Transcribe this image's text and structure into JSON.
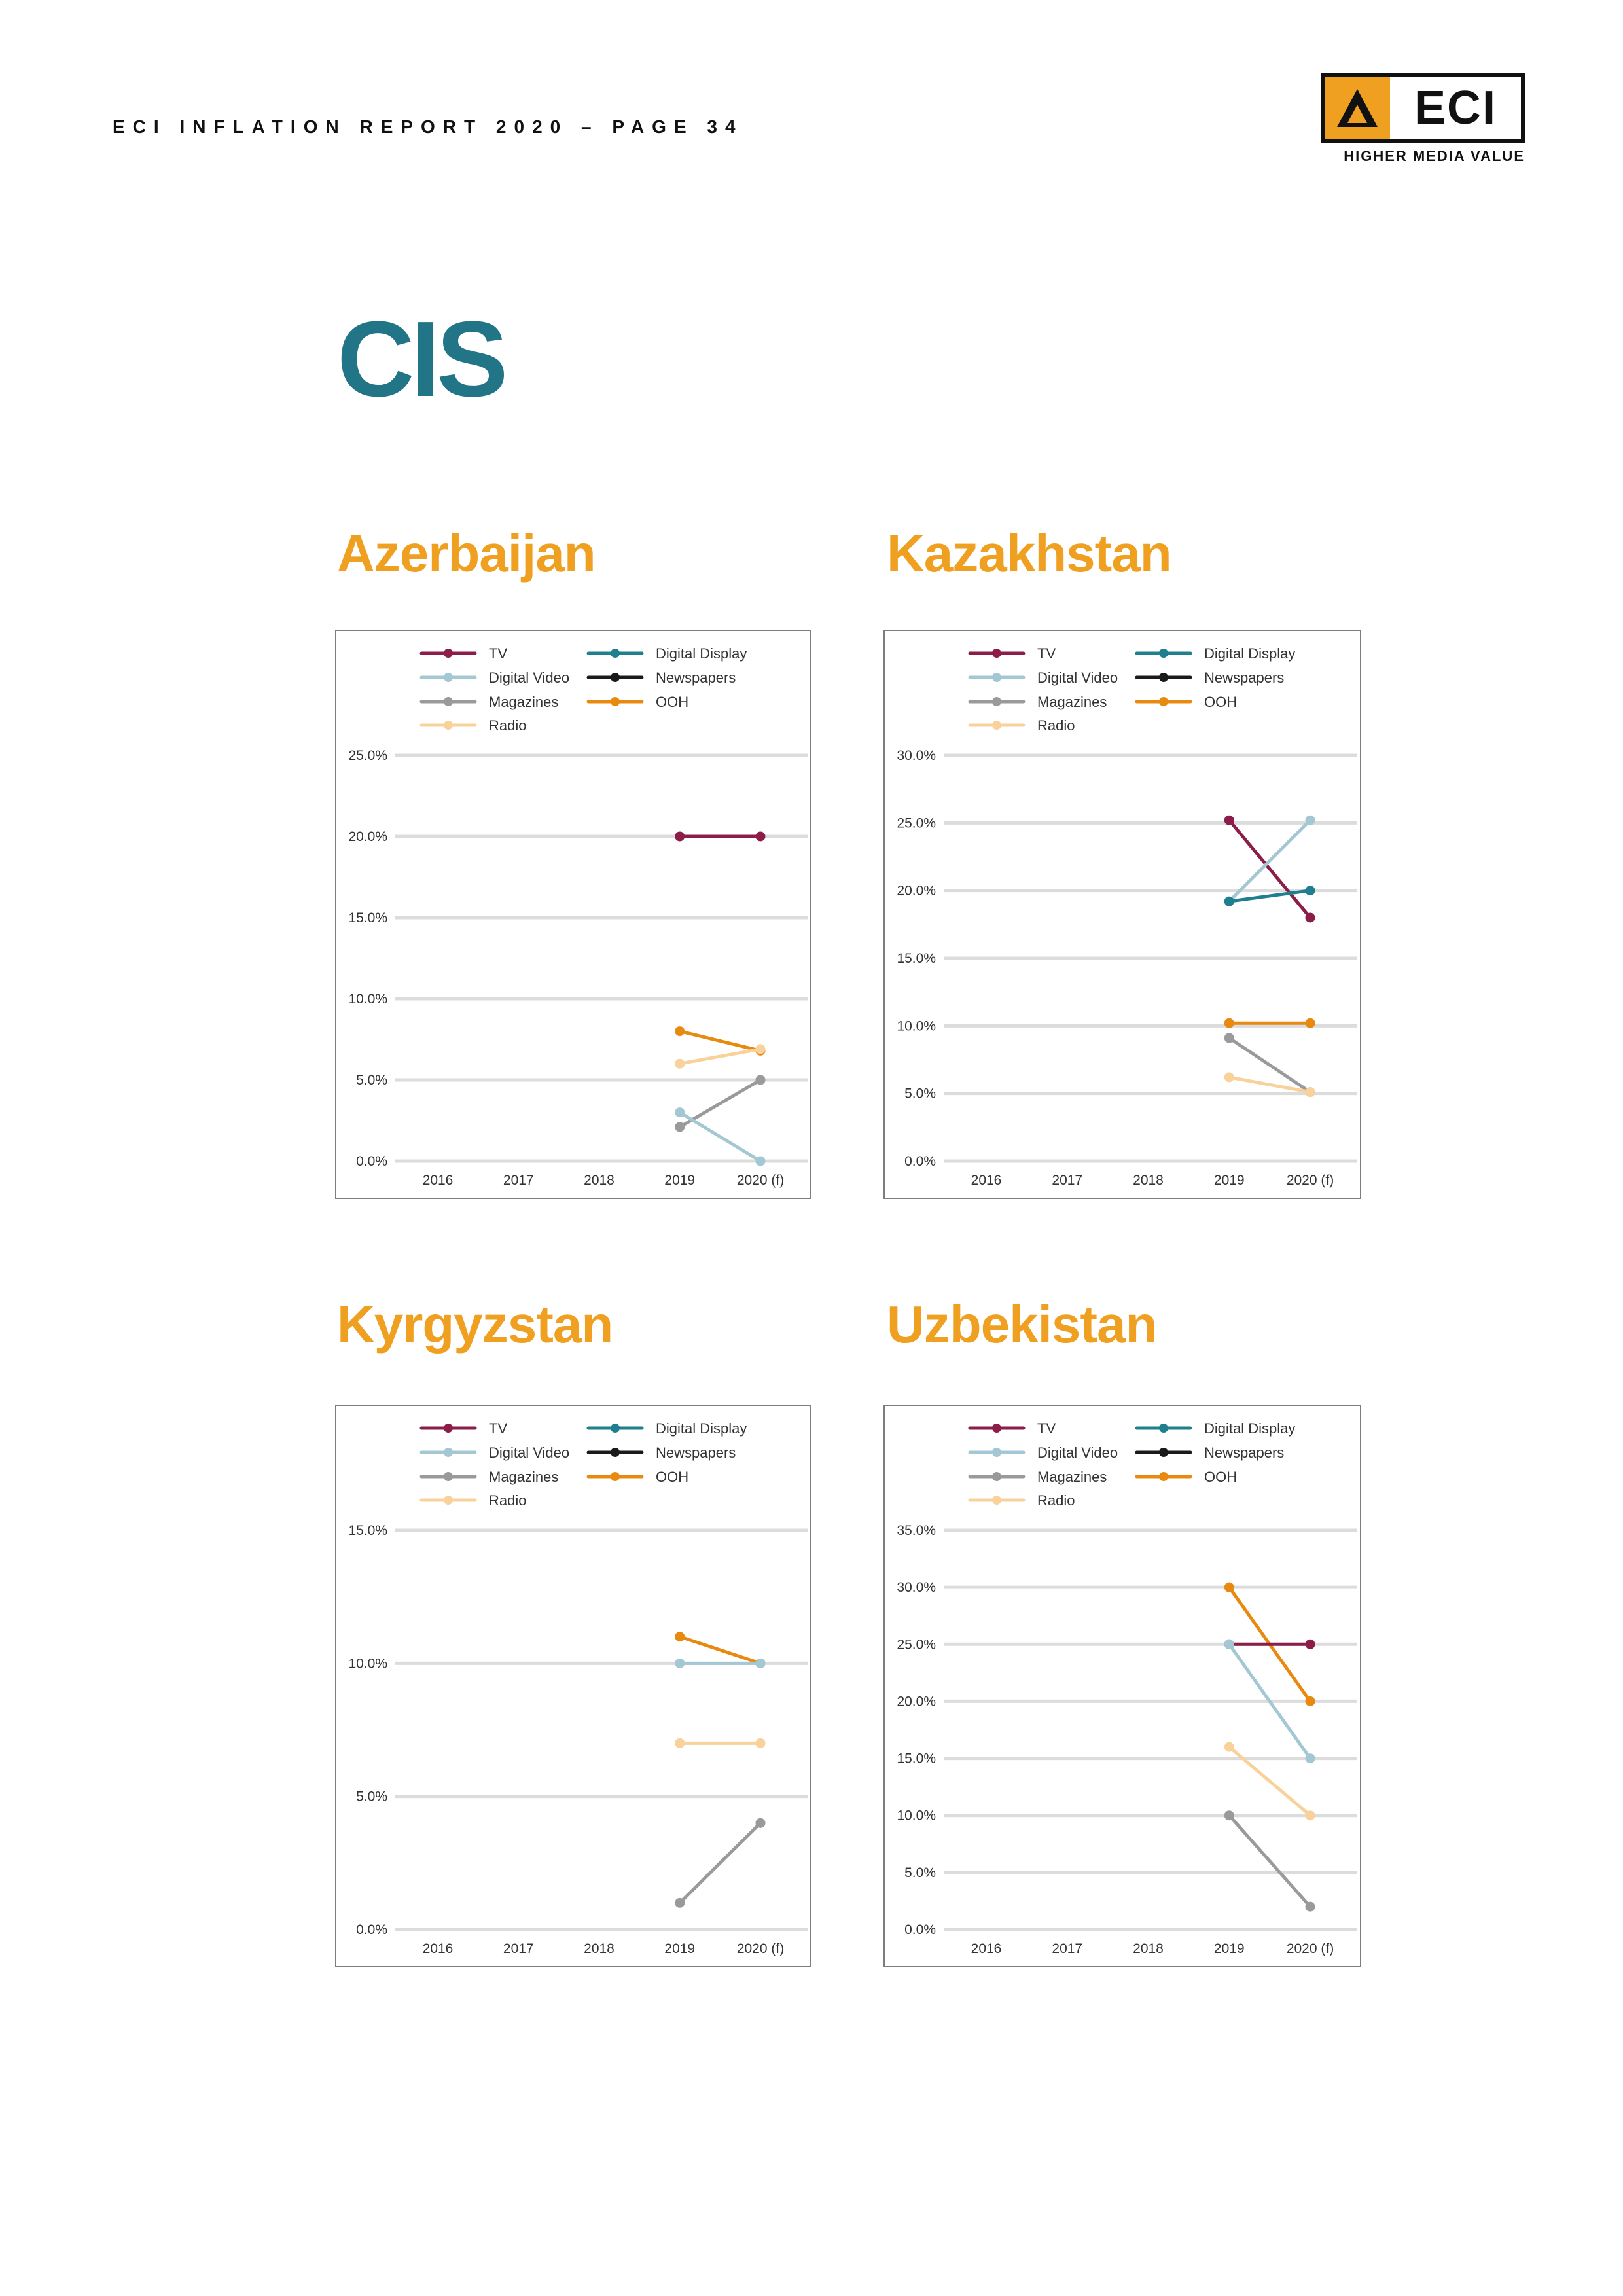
{
  "header": {
    "text": "ECI INFLATION REPORT 2020 – PAGE 34"
  },
  "logo": {
    "word": "ECI",
    "tagline": "HIGHER MEDIA VALUE",
    "accent": "#f0a020"
  },
  "section_title": "CIS",
  "colors": {
    "TV": "#8b1d48",
    "Digital Display": "#1f7f8f",
    "Digital Video": "#a3c8d3",
    "Newspapers": "#1a1a1a",
    "Magazines": "#9a9a9a",
    "OOH": "#e88a10",
    "Radio": "#f8d29a",
    "title_orange": "#f0a020",
    "title_teal": "#217587"
  },
  "legend": [
    "TV",
    "Digital Display",
    "Digital Video",
    "Newspapers",
    "Magazines",
    "OOH",
    "Radio"
  ],
  "chart_data": [
    {
      "type": "line",
      "title": "Azerbaijan",
      "x": [
        "2016",
        "2017",
        "2018",
        "2019",
        "2020 (f)"
      ],
      "yticks": [
        "0.0%",
        "5.0%",
        "10.0%",
        "15.0%",
        "20.0%",
        "25.0%"
      ],
      "ylim": [
        0,
        25
      ],
      "series": [
        {
          "name": "TV",
          "values": [
            null,
            null,
            null,
            20,
            20
          ]
        },
        {
          "name": "OOH",
          "values": [
            null,
            null,
            null,
            8,
            6.8
          ]
        },
        {
          "name": "Radio",
          "values": [
            null,
            null,
            null,
            6,
            6.9
          ]
        },
        {
          "name": "Magazines",
          "values": [
            null,
            null,
            null,
            2.1,
            5
          ]
        },
        {
          "name": "Digital Video",
          "values": [
            null,
            null,
            null,
            3,
            0
          ]
        }
      ]
    },
    {
      "type": "line",
      "title": "Kazakhstan",
      "x": [
        "2016",
        "2017",
        "2018",
        "2019",
        "2020 (f)"
      ],
      "yticks": [
        "0.0%",
        "5.0%",
        "10.0%",
        "15.0%",
        "20.0%",
        "25.0%",
        "30.0%"
      ],
      "ylim": [
        0,
        30
      ],
      "series": [
        {
          "name": "TV",
          "values": [
            null,
            null,
            null,
            25.2,
            18
          ]
        },
        {
          "name": "Digital Video",
          "values": [
            null,
            null,
            null,
            19.2,
            25.2
          ]
        },
        {
          "name": "Digital Display",
          "values": [
            null,
            null,
            null,
            19.2,
            20
          ]
        },
        {
          "name": "OOH",
          "values": [
            null,
            null,
            null,
            10.2,
            10.2
          ]
        },
        {
          "name": "Magazines",
          "values": [
            null,
            null,
            null,
            9.1,
            5.1
          ]
        },
        {
          "name": "Radio",
          "values": [
            null,
            null,
            null,
            6.2,
            5.1
          ]
        }
      ]
    },
    {
      "type": "line",
      "title": "Kyrgyzstan",
      "x": [
        "2016",
        "2017",
        "2018",
        "2019",
        "2020 (f)"
      ],
      "yticks": [
        "0.0%",
        "5.0%",
        "10.0%",
        "15.0%"
      ],
      "ylim": [
        0,
        15
      ],
      "series": [
        {
          "name": "OOH",
          "values": [
            null,
            null,
            null,
            11,
            10
          ]
        },
        {
          "name": "Digital Video",
          "values": [
            null,
            null,
            null,
            10,
            10
          ]
        },
        {
          "name": "Radio",
          "values": [
            null,
            null,
            null,
            7,
            7
          ]
        },
        {
          "name": "Magazines",
          "values": [
            null,
            null,
            null,
            1,
            4
          ]
        }
      ]
    },
    {
      "type": "line",
      "title": "Uzbekistan",
      "x": [
        "2016",
        "2017",
        "2018",
        "2019",
        "2020 (f)"
      ],
      "yticks": [
        "0.0%",
        "5.0%",
        "10.0%",
        "15.0%",
        "20.0%",
        "25.0%",
        "30.0%",
        "35.0%"
      ],
      "ylim": [
        0,
        35
      ],
      "series": [
        {
          "name": "OOH",
          "values": [
            null,
            null,
            null,
            30,
            20
          ]
        },
        {
          "name": "TV",
          "values": [
            null,
            null,
            null,
            25,
            25
          ]
        },
        {
          "name": "Digital Video",
          "values": [
            null,
            null,
            null,
            25,
            15
          ]
        },
        {
          "name": "Radio",
          "values": [
            null,
            null,
            null,
            16,
            10
          ]
        },
        {
          "name": "Magazines",
          "values": [
            null,
            null,
            null,
            10,
            2
          ]
        }
      ]
    }
  ]
}
